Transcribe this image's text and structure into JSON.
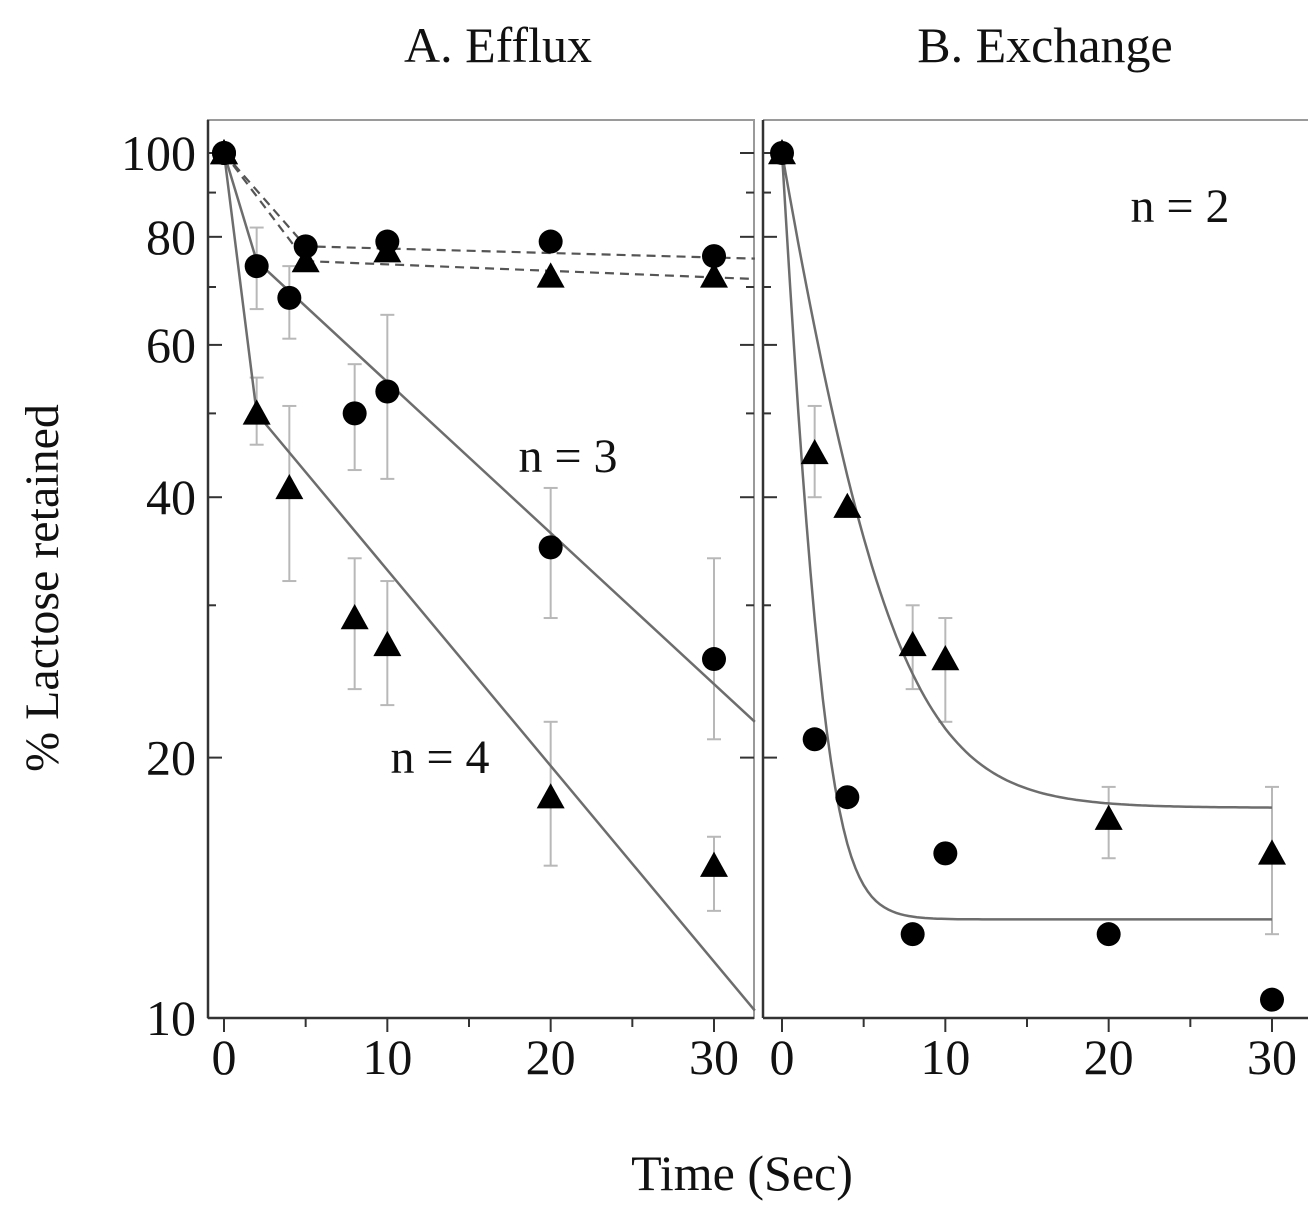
{
  "chart_data": [
    {
      "type": "scatter",
      "panel_title": "A.  Efflux",
      "ylabel": "% Lactose retained",
      "xlabel": "",
      "y_scale": "log",
      "ylim": [
        10,
        100
      ],
      "xlim": [
        -1,
        32.5
      ],
      "y_ticks": [
        100,
        80,
        60,
        40,
        20,
        10
      ],
      "x_ticks": [
        0,
        10,
        20,
        30
      ],
      "annotations": [
        "n = 3",
        "n = 4"
      ],
      "series": [
        {
          "marker": "circle",
          "line": "solid",
          "points": [
            {
              "x": 0,
              "y": 100
            },
            {
              "x": 2,
              "y": 74,
              "err": [
                66,
                82
              ]
            },
            {
              "x": 4,
              "y": 68,
              "err": [
                61,
                74
              ]
            },
            {
              "x": 8,
              "y": 50,
              "err": [
                43,
                57
              ]
            },
            {
              "x": 10,
              "y": 53,
              "err": [
                42,
                65
              ]
            },
            {
              "x": 20,
              "y": 35,
              "err": [
                29,
                41
              ]
            },
            {
              "x": 30,
              "y": 26,
              "err": [
                21,
                34
              ]
            }
          ],
          "fit": [
            {
              "x": 0,
              "y": 100
            },
            {
              "x": 2,
              "y": 75
            },
            {
              "x": 32.5,
              "y": 22
            }
          ]
        },
        {
          "marker": "triangle",
          "line": "solid",
          "points": [
            {
              "x": 0,
              "y": 100
            },
            {
              "x": 2,
              "y": 50,
              "err": [
                46,
                55
              ]
            },
            {
              "x": 4,
              "y": 41,
              "err": [
                32,
                51
              ]
            },
            {
              "x": 8,
              "y": 29,
              "err": [
                24,
                34
              ]
            },
            {
              "x": 10,
              "y": 27,
              "err": [
                23,
                32
              ]
            },
            {
              "x": 20,
              "y": 18,
              "err": [
                15,
                22
              ]
            },
            {
              "x": 30,
              "y": 15,
              "err": [
                13.3,
                16.2
              ]
            }
          ],
          "fit": [
            {
              "x": 0,
              "y": 100
            },
            {
              "x": 2,
              "y": 50
            },
            {
              "x": 32.5,
              "y": 10.2
            }
          ]
        },
        {
          "marker": "circle",
          "line": "dashed",
          "points": [
            {
              "x": 0,
              "y": 100
            },
            {
              "x": 5,
              "y": 78
            },
            {
              "x": 10,
              "y": 79
            },
            {
              "x": 20,
              "y": 79
            },
            {
              "x": 30,
              "y": 76
            }
          ],
          "fit": [
            {
              "x": 0,
              "y": 100
            },
            {
              "x": 5,
              "y": 78
            },
            {
              "x": 32.5,
              "y": 75.5
            }
          ]
        },
        {
          "marker": "triangle",
          "line": "dashed",
          "points": [
            {
              "x": 0,
              "y": 100
            },
            {
              "x": 5,
              "y": 75
            },
            {
              "x": 10,
              "y": 77
            },
            {
              "x": 20,
              "y": 72
            },
            {
              "x": 30,
              "y": 72
            }
          ],
          "fit": [
            {
              "x": 0,
              "y": 100
            },
            {
              "x": 5,
              "y": 75
            },
            {
              "x": 32.5,
              "y": 71.5
            }
          ]
        }
      ]
    },
    {
      "type": "scatter",
      "panel_title": "B. Exchange",
      "ylabel": "",
      "xlabel": "",
      "y_scale": "log",
      "ylim": [
        10,
        100
      ],
      "xlim": [
        -1,
        32
      ],
      "x_ticks": [
        0,
        10,
        20,
        30
      ],
      "annotations": [
        "n = 2"
      ],
      "series": [
        {
          "marker": "triangle",
          "line": "solid",
          "points": [
            {
              "x": 0,
              "y": 100
            },
            {
              "x": 2,
              "y": 45,
              "err": [
                40,
                51
              ]
            },
            {
              "x": 4,
              "y": 39
            },
            {
              "x": 8,
              "y": 27,
              "err": [
                24,
                30
              ]
            },
            {
              "x": 10,
              "y": 26,
              "err": [
                22,
                29
              ]
            },
            {
              "x": 20,
              "y": 17,
              "err": [
                15.3,
                18.5
              ]
            },
            {
              "x": 30,
              "y": 15.5,
              "err": [
                12.5,
                18.5
              ]
            }
          ],
          "fit_model": {
            "plateau": 17.5,
            "k": 0.3
          }
        },
        {
          "marker": "circle",
          "line": "solid",
          "points": [
            {
              "x": 0,
              "y": 100
            },
            {
              "x": 2,
              "y": 21
            },
            {
              "x": 4,
              "y": 18
            },
            {
              "x": 8,
              "y": 12.5
            },
            {
              "x": 10,
              "y": 15.5
            },
            {
              "x": 20,
              "y": 12.5
            },
            {
              "x": 30,
              "y": 10.5
            }
          ],
          "fit_model": {
            "plateau": 13,
            "k": 0.85
          }
        }
      ]
    }
  ],
  "shared": {
    "xlabel": "Time (Sec)"
  }
}
